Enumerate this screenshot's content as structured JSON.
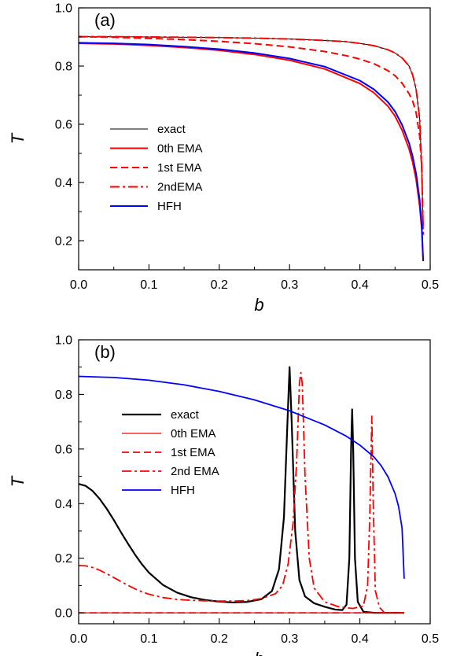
{
  "chart_data": [
    {
      "type": "line",
      "panel_label": "(a)",
      "xlabel": "b",
      "ylabel": "T",
      "xlim": [
        0.0,
        0.5
      ],
      "ylim": [
        0.1,
        1.0
      ],
      "xticks": [
        0.0,
        0.1,
        0.2,
        0.3,
        0.4,
        0.5
      ],
      "xtick_labels": [
        "0.0",
        "0.1",
        "0.2",
        "0.3",
        "0.4",
        "0.5"
      ],
      "yticks": [
        0.2,
        0.4,
        0.6,
        0.8,
        1.0
      ],
      "ytick_labels": [
        "0.2",
        "0.4",
        "0.6",
        "0.8",
        "1.0"
      ],
      "grid": false,
      "legend_placement": "lower-left",
      "series": [
        {
          "name": "exact",
          "color": "#000000",
          "style": "solid",
          "points": [
            [
              0,
              0.901
            ],
            [
              0.05,
              0.901
            ],
            [
              0.1,
              0.9
            ],
            [
              0.15,
              0.899
            ],
            [
              0.2,
              0.898
            ],
            [
              0.25,
              0.896
            ],
            [
              0.3,
              0.893
            ],
            [
              0.35,
              0.888
            ],
            [
              0.38,
              0.884
            ],
            [
              0.4,
              0.878
            ],
            [
              0.42,
              0.87
            ],
            [
              0.44,
              0.856
            ],
            [
              0.45,
              0.845
            ],
            [
              0.46,
              0.828
            ],
            [
              0.47,
              0.8
            ],
            [
              0.475,
              0.77
            ],
            [
              0.48,
              0.72
            ],
            [
              0.485,
              0.62
            ],
            [
              0.488,
              0.45
            ],
            [
              0.49,
              0.24
            ]
          ]
        },
        {
          "name": "0th EMA",
          "color": "#ff0000",
          "style": "solid",
          "points": [
            [
              0,
              0.878
            ],
            [
              0.05,
              0.876
            ],
            [
              0.1,
              0.871
            ],
            [
              0.15,
              0.864
            ],
            [
              0.2,
              0.854
            ],
            [
              0.25,
              0.84
            ],
            [
              0.3,
              0.82
            ],
            [
              0.35,
              0.79
            ],
            [
              0.4,
              0.74
            ],
            [
              0.42,
              0.708
            ],
            [
              0.44,
              0.662
            ],
            [
              0.45,
              0.628
            ],
            [
              0.46,
              0.58
            ],
            [
              0.47,
              0.515
            ],
            [
              0.475,
              0.47
            ],
            [
              0.48,
              0.41
            ],
            [
              0.485,
              0.32
            ],
            [
              0.488,
              0.24
            ],
            [
              0.49,
              0.13
            ]
          ]
        },
        {
          "name": "1st EMA",
          "color": "#ff0000",
          "style": "dash",
          "points": [
            [
              0,
              0.901
            ],
            [
              0.05,
              0.899
            ],
            [
              0.1,
              0.895
            ],
            [
              0.15,
              0.891
            ],
            [
              0.2,
              0.885
            ],
            [
              0.25,
              0.877
            ],
            [
              0.3,
              0.866
            ],
            [
              0.35,
              0.85
            ],
            [
              0.38,
              0.836
            ],
            [
              0.4,
              0.824
            ],
            [
              0.42,
              0.808
            ],
            [
              0.44,
              0.784
            ],
            [
              0.45,
              0.767
            ],
            [
              0.46,
              0.741
            ],
            [
              0.47,
              0.705
            ],
            [
              0.475,
              0.68
            ],
            [
              0.48,
              0.64
            ],
            [
              0.485,
              0.56
            ],
            [
              0.488,
              0.45
            ],
            [
              0.49,
              0.22
            ]
          ]
        },
        {
          "name": "2ndEMA",
          "color": "#ff0000",
          "style": "dashdot",
          "points": [
            [
              0,
              0.901
            ],
            [
              0.05,
              0.901
            ],
            [
              0.1,
              0.9
            ],
            [
              0.15,
              0.899
            ],
            [
              0.2,
              0.898
            ],
            [
              0.25,
              0.896
            ],
            [
              0.3,
              0.893
            ],
            [
              0.35,
              0.888
            ],
            [
              0.38,
              0.884
            ],
            [
              0.4,
              0.878
            ],
            [
              0.42,
              0.87
            ],
            [
              0.44,
              0.856
            ],
            [
              0.45,
              0.845
            ],
            [
              0.46,
              0.828
            ],
            [
              0.47,
              0.8
            ],
            [
              0.475,
              0.77
            ],
            [
              0.48,
              0.72
            ],
            [
              0.485,
              0.62
            ],
            [
              0.488,
              0.45
            ],
            [
              0.49,
              0.24
            ]
          ]
        },
        {
          "name": "HFH",
          "color": "#0000ff",
          "style": "solid",
          "points": [
            [
              0,
              0.88
            ],
            [
              0.05,
              0.878
            ],
            [
              0.1,
              0.874
            ],
            [
              0.15,
              0.867
            ],
            [
              0.2,
              0.858
            ],
            [
              0.25,
              0.845
            ],
            [
              0.3,
              0.826
            ],
            [
              0.35,
              0.798
            ],
            [
              0.4,
              0.75
            ],
            [
              0.42,
              0.72
            ],
            [
              0.44,
              0.676
            ],
            [
              0.45,
              0.644
            ],
            [
              0.46,
              0.598
            ],
            [
              0.47,
              0.535
            ],
            [
              0.475,
              0.49
            ],
            [
              0.48,
              0.43
            ],
            [
              0.485,
              0.34
            ],
            [
              0.488,
              0.25
            ],
            [
              0.49,
              0.13
            ]
          ]
        }
      ]
    },
    {
      "type": "line",
      "panel_label": "(b)",
      "xlabel": "b",
      "ylabel": "T",
      "xlim": [
        0.0,
        0.5
      ],
      "ylim": [
        -0.04,
        1.0
      ],
      "xticks": [
        0.0,
        0.1,
        0.2,
        0.3,
        0.4,
        0.5
      ],
      "xtick_labels": [
        "0.0",
        "0.1",
        "0.2",
        "0.3",
        "0.4",
        "0.5"
      ],
      "yticks": [
        0.0,
        0.2,
        0.4,
        0.6,
        0.8,
        1.0
      ],
      "ytick_labels": [
        "0.0",
        "0.2",
        "0.4",
        "0.6",
        "0.8",
        "1.0"
      ],
      "grid": false,
      "legend_placement": "center-left",
      "series": [
        {
          "name": "exact",
          "color": "#000000",
          "style": "solid",
          "width": 2.2,
          "points": [
            [
              0,
              0.472
            ],
            [
              0.01,
              0.465
            ],
            [
              0.02,
              0.446
            ],
            [
              0.03,
              0.417
            ],
            [
              0.04,
              0.381
            ],
            [
              0.05,
              0.34
            ],
            [
              0.06,
              0.296
            ],
            [
              0.07,
              0.254
            ],
            [
              0.08,
              0.214
            ],
            [
              0.09,
              0.178
            ],
            [
              0.1,
              0.147
            ],
            [
              0.12,
              0.102
            ],
            [
              0.14,
              0.074
            ],
            [
              0.16,
              0.057
            ],
            [
              0.18,
              0.047
            ],
            [
              0.2,
              0.041
            ],
            [
              0.22,
              0.038
            ],
            [
              0.24,
              0.04
            ],
            [
              0.26,
              0.05
            ],
            [
              0.275,
              0.08
            ],
            [
              0.285,
              0.16
            ],
            [
              0.292,
              0.35
            ],
            [
              0.297,
              0.7
            ],
            [
              0.3,
              0.9
            ],
            [
              0.303,
              0.7
            ],
            [
              0.308,
              0.3
            ],
            [
              0.314,
              0.12
            ],
            [
              0.322,
              0.06
            ],
            [
              0.335,
              0.035
            ],
            [
              0.35,
              0.022
            ],
            [
              0.365,
              0.012
            ],
            [
              0.375,
              0.01
            ],
            [
              0.381,
              0.03
            ],
            [
              0.385,
              0.2
            ],
            [
              0.3875,
              0.6
            ],
            [
              0.389,
              0.745
            ],
            [
              0.3905,
              0.6
            ],
            [
              0.393,
              0.2
            ],
            [
              0.397,
              0.04
            ],
            [
              0.405,
              0.004
            ],
            [
              0.42,
              0.0
            ],
            [
              0.463,
              0.0
            ]
          ]
        },
        {
          "name": "0th EMA",
          "color": "#ff0000",
          "style": "solid",
          "width": 1.2,
          "points": [
            [
              0,
              0.0
            ],
            [
              0.463,
              0.0
            ]
          ]
        },
        {
          "name": "1st EMA",
          "color": "#ff0000",
          "style": "dash",
          "width": 1.8,
          "points": [
            [
              0,
              0.0
            ],
            [
              0.463,
              0.0
            ]
          ]
        },
        {
          "name": "2nd EMA",
          "color": "#ff0000",
          "style": "dashdot",
          "width": 1.8,
          "points": [
            [
              0,
              0.173
            ],
            [
              0.01,
              0.172
            ],
            [
              0.02,
              0.166
            ],
            [
              0.03,
              0.156
            ],
            [
              0.04,
              0.143
            ],
            [
              0.05,
              0.129
            ],
            [
              0.06,
              0.115
            ],
            [
              0.07,
              0.101
            ],
            [
              0.08,
              0.088
            ],
            [
              0.09,
              0.077
            ],
            [
              0.1,
              0.068
            ],
            [
              0.12,
              0.056
            ],
            [
              0.14,
              0.049
            ],
            [
              0.16,
              0.046
            ],
            [
              0.18,
              0.044
            ],
            [
              0.2,
              0.043
            ],
            [
              0.22,
              0.043
            ],
            [
              0.24,
              0.045
            ],
            [
              0.26,
              0.052
            ],
            [
              0.28,
              0.07
            ],
            [
              0.29,
              0.1
            ],
            [
              0.298,
              0.18
            ],
            [
              0.305,
              0.33
            ],
            [
              0.31,
              0.55
            ],
            [
              0.314,
              0.84
            ],
            [
              0.316,
              0.88
            ],
            [
              0.318,
              0.84
            ],
            [
              0.322,
              0.5
            ],
            [
              0.328,
              0.2
            ],
            [
              0.335,
              0.09
            ],
            [
              0.35,
              0.04
            ],
            [
              0.37,
              0.022
            ],
            [
              0.39,
              0.016
            ],
            [
              0.405,
              0.025
            ],
            [
              0.411,
              0.1
            ],
            [
              0.414,
              0.35
            ],
            [
              0.417,
              0.72
            ],
            [
              0.419,
              0.4
            ],
            [
              0.422,
              0.08
            ],
            [
              0.428,
              0.02
            ],
            [
              0.435,
              0.0
            ],
            [
              0.463,
              0.0
            ]
          ]
        },
        {
          "name": "HFH",
          "color": "#0000ff",
          "style": "solid",
          "width": 1.8,
          "points": [
            [
              0,
              0.866
            ],
            [
              0.05,
              0.862
            ],
            [
              0.1,
              0.852
            ],
            [
              0.15,
              0.835
            ],
            [
              0.2,
              0.811
            ],
            [
              0.25,
              0.78
            ],
            [
              0.3,
              0.74
            ],
            [
              0.35,
              0.688
            ],
            [
              0.38,
              0.648
            ],
            [
              0.4,
              0.614
            ],
            [
              0.42,
              0.571
            ],
            [
              0.43,
              0.54
            ],
            [
              0.44,
              0.498
            ],
            [
              0.45,
              0.437
            ],
            [
              0.455,
              0.39
            ],
            [
              0.46,
              0.31
            ],
            [
              0.463,
              0.125
            ]
          ]
        }
      ]
    }
  ]
}
